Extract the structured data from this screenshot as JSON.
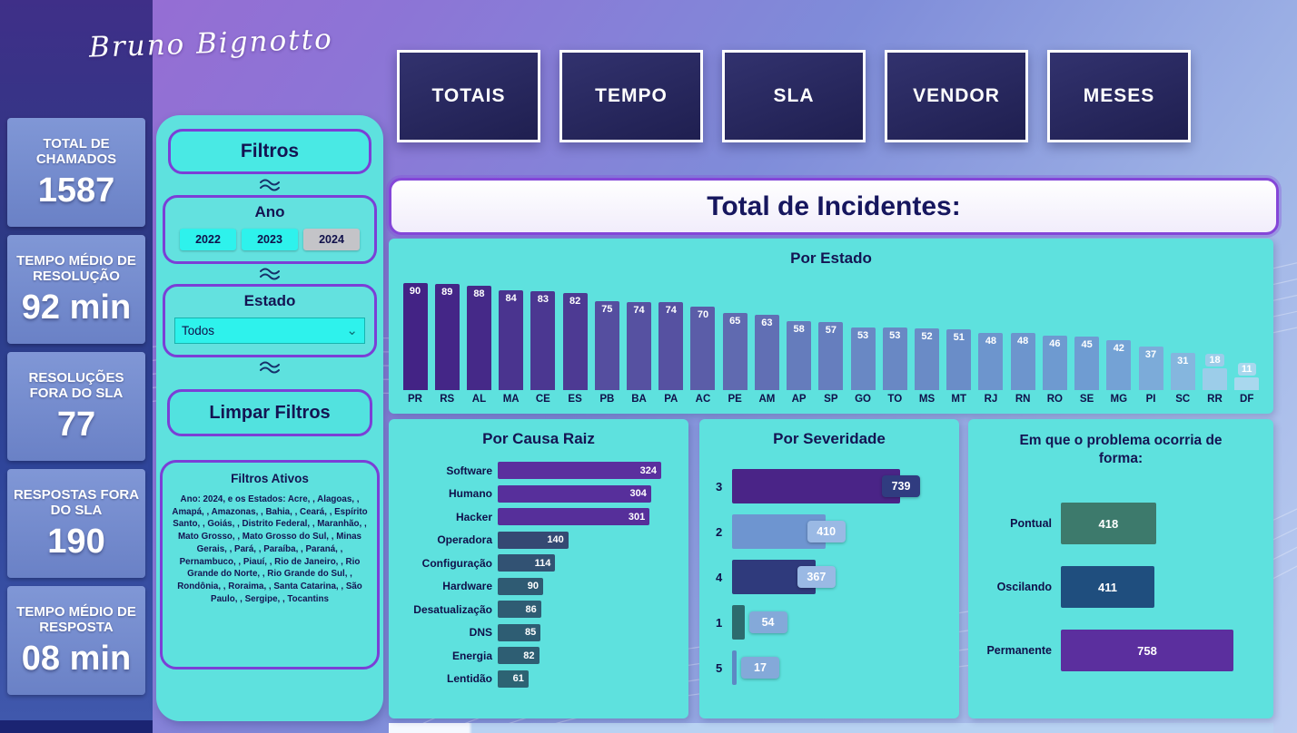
{
  "header": {
    "signature": "Bruno Bignotto"
  },
  "nav": {
    "tabs": [
      "TOTAIS",
      "TEMPO",
      "SLA",
      "VENDOR",
      "MESES"
    ]
  },
  "kpis": [
    {
      "label": "TOTAL DE CHAMADOS",
      "value": "1587"
    },
    {
      "label": "TEMPO MÉDIO DE RESOLUÇÃO",
      "value": "92 min"
    },
    {
      "label": "RESOLUÇÕES FORA DO SLA",
      "value": "77"
    },
    {
      "label": "RESPOSTAS FORA DO SLA",
      "value": "190"
    },
    {
      "label": "TEMPO MÉDIO DE RESPOSTA",
      "value": "08 min"
    }
  ],
  "filters": {
    "title": "Filtros",
    "year": {
      "label": "Ano",
      "options": [
        {
          "label": "2022",
          "selected": false
        },
        {
          "label": "2023",
          "selected": false
        },
        {
          "label": "2024",
          "selected": true
        }
      ]
    },
    "state": {
      "label": "Estado",
      "value": "Todos"
    },
    "clear_label": "Limpar Filtros",
    "active": {
      "title": "Filtros Ativos",
      "text": "Ano: 2024,  e os Estados:  Acre, , Alagoas, ,  Amapá, ,  Amazonas, ,  Bahia, ,  Ceará, ,  Espírito Santo, ,  Goiás, ,  Distrito Federal, ,  Maranhão, ,  Mato Grosso, ,  Mato Grosso do Sul, ,  Minas Gerais, ,  Pará, ,  Paraíba, ,  Paraná, ,  Pernambuco, ,  Piauí, ,  Rio de Janeiro, ,  Rio Grande do Norte, ,  Rio Grande do Sul, ,  Rondônia, ,  Roraima, ,  Santa Catarina, ,  São Paulo, ,  Sergipe, ,  Tocantins"
    }
  },
  "icons": {
    "chevron_down": "⌄"
  },
  "main": {
    "title": "Total de Incidentes:"
  },
  "colors": {
    "panel_cyan": "#5ee1de",
    "accent_purple": "#7b3fd6",
    "navy_text": "#141452",
    "nav_button": "#28285e",
    "kpi_card": "#7c93d3"
  },
  "chart_data": [
    {
      "type": "bar",
      "title": "Por Estado",
      "categories": [
        "PR",
        "RS",
        "AL",
        "MA",
        "CE",
        "ES",
        "PB",
        "BA",
        "PA",
        "AC",
        "PE",
        "AM",
        "AP",
        "SP",
        "GO",
        "TO",
        "MS",
        "MT",
        "RJ",
        "RN",
        "RO",
        "SE",
        "MG",
        "PI",
        "SC",
        "RR",
        "DF"
      ],
      "values": [
        90,
        89,
        88,
        84,
        83,
        82,
        75,
        74,
        74,
        70,
        65,
        63,
        58,
        57,
        53,
        53,
        52,
        51,
        48,
        48,
        46,
        45,
        42,
        37,
        31,
        18,
        11
      ],
      "ylim": [
        0,
        90
      ],
      "color_stops": [
        "#bfe9f6",
        "#93c6e6",
        "#6f9cd2",
        "#5e64ac",
        "#432385"
      ],
      "legend": "none",
      "grid": false
    },
    {
      "type": "bar",
      "orientation": "horizontal",
      "title": "Por Causa Raiz",
      "categories": [
        "Software",
        "Humano",
        "Hacker",
        "Operadora",
        "Configuração",
        "Hardware",
        "Desatualização",
        "DNS",
        "Energia",
        "Lentidão"
      ],
      "values": [
        324,
        304,
        301,
        140,
        114,
        90,
        86,
        85,
        82,
        61
      ],
      "xlim": [
        0,
        324
      ],
      "color_stops": [
        "#2b7373",
        "#2e5e73",
        "#374173",
        "#4b2f91",
        "#5b2f9e"
      ],
      "legend": "none",
      "grid": false
    },
    {
      "type": "bar",
      "orientation": "horizontal",
      "title": "Por Severidade",
      "categories": [
        "3",
        "2",
        "4",
        "1",
        "5"
      ],
      "values": [
        739,
        410,
        367,
        54,
        17
      ],
      "xlim": [
        0,
        739
      ],
      "bar_colors": [
        "#4a2487",
        "#6e95d0",
        "#2f3a7c",
        "#2c6b6e",
        "#5d88c4"
      ],
      "badge_colors": [
        "#303c80",
        "#9ab9e4",
        "#9ab9e4",
        "#84a9d9",
        "#84a9d9"
      ],
      "legend": "none",
      "grid": false
    },
    {
      "type": "bar",
      "orientation": "horizontal",
      "title": "Em que o problema ocorria de forma:",
      "categories": [
        "Pontual",
        "Oscilando",
        "Permanente"
      ],
      "values": [
        418,
        411,
        758
      ],
      "xlim": [
        0,
        758
      ],
      "bar_colors": [
        "#3d7a6c",
        "#1f4e7e",
        "#5b2f9e"
      ],
      "legend": "none",
      "grid": false
    }
  ]
}
